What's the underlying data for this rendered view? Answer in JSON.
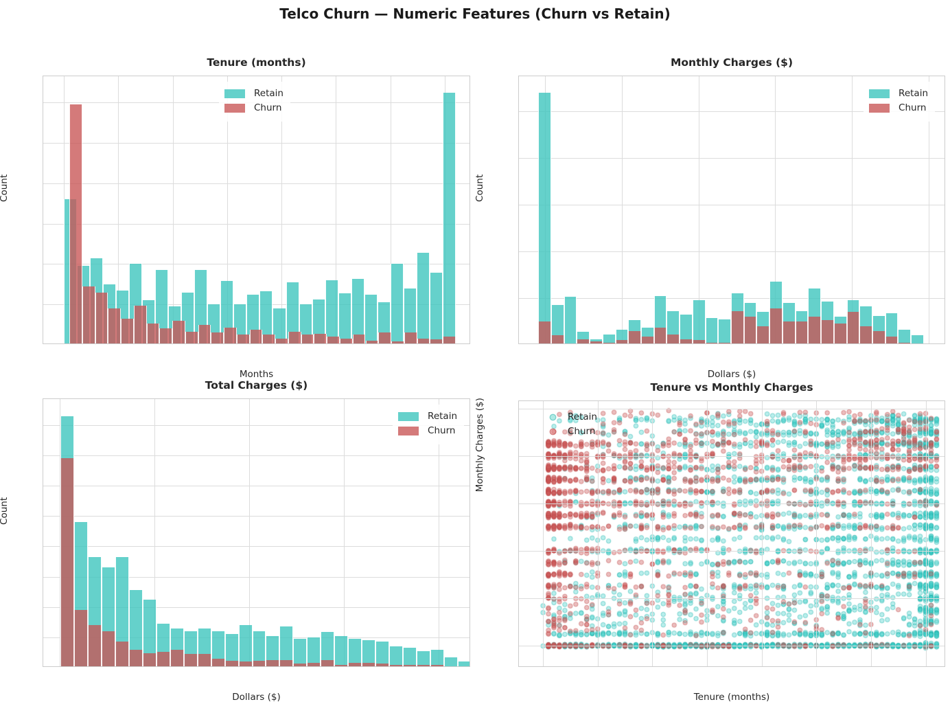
{
  "suptitle": "Telco Churn — Numeric Features (Churn vs Retain)",
  "legend": {
    "retain": "Retain",
    "churn": "Churn"
  },
  "colors": {
    "retain": "#48D1CC",
    "churn": "#CD5C5C",
    "retain_point_fill": "rgba(72,209,204,0.38)",
    "retain_point_edge": "rgba(32,178,170,0.5)",
    "churn_point_fill": "rgba(205,92,92,0.40)",
    "churn_point_edge": "rgba(190,70,70,0.5)",
    "grid": "#dcdcdc"
  },
  "chart_data": [
    {
      "id": "tenure-hist",
      "type": "bar",
      "title": "Tenure (months)",
      "xlabel": "Months",
      "ylabel": "Count",
      "xlim": [
        -3.8,
        74.8
      ],
      "ylim": [
        0,
        665
      ],
      "xticks": [
        0,
        10,
        20,
        30,
        40,
        50,
        60,
        70
      ],
      "yticks": [
        0,
        100,
        200,
        300,
        400,
        500,
        600
      ],
      "grid": true,
      "legend_pos": "upper-center",
      "series": [
        {
          "name": "Retain",
          "bin_start": 0,
          "bin_width": 2.4,
          "values": [
            360,
            195,
            215,
            150,
            135,
            200,
            110,
            185,
            95,
            130,
            185,
            100,
            158,
            100,
            125,
            133,
            90,
            155,
            100,
            113,
            160,
            128,
            163,
            125,
            105,
            200,
            140,
            228,
            178,
            625
          ]
        },
        {
          "name": "Churn",
          "bin_start": 1,
          "bin_width": 2.3667,
          "values": [
            595,
            145,
            130,
            90,
            65,
            97,
            52,
            40,
            60,
            33,
            50,
            30,
            43,
            25,
            38,
            25,
            15,
            33,
            25,
            28,
            20,
            15,
            25,
            10,
            30,
            8,
            30,
            15,
            13,
            20
          ]
        }
      ]
    },
    {
      "id": "monthly-hist",
      "type": "bar",
      "title": "Monthly Charges ($)",
      "xlabel": "Dollars ($)",
      "ylabel": "Count",
      "xlim": [
        13.2,
        124.5
      ],
      "ylim": [
        0,
        1150
      ],
      "xticks": [
        20,
        40,
        60,
        80,
        100,
        120
      ],
      "yticks": [
        0,
        200,
        400,
        600,
        800,
        1000
      ],
      "grid": true,
      "legend_pos": "upper-right",
      "series": [
        {
          "name": "Retain",
          "bin_start": 18.25,
          "bin_width": 3.35,
          "values": [
            1080,
            170,
            205,
            55,
            25,
            45,
            65,
            105,
            75,
            210,
            145,
            130,
            190,
            115,
            110,
            220,
            180,
            140,
            270,
            180,
            145,
            240,
            185,
            120,
            190,
            165,
            125,
            135,
            65,
            40
          ]
        },
        {
          "name": "Churn",
          "bin_start": 18.25,
          "bin_width": 3.35,
          "values": [
            100,
            40,
            2,
            25,
            15,
            8,
            20,
            60,
            35,
            75,
            45,
            25,
            22,
            10,
            8,
            145,
            120,
            80,
            155,
            100,
            100,
            120,
            105,
            90,
            140,
            80,
            60,
            35,
            8,
            2
          ]
        }
      ]
    },
    {
      "id": "total-hist",
      "type": "bar",
      "title": "Total Charges ($)",
      "xlabel": "Dollars ($)",
      "ylabel": "Count",
      "xlim": [
        -350,
        8680
      ],
      "ylim": [
        0,
        886
      ],
      "xticks": [
        0,
        2000,
        4000,
        6000,
        8000
      ],
      "yticks": [
        0,
        100,
        200,
        300,
        400,
        500,
        600,
        700,
        800
      ],
      "grid": true,
      "legend_pos": "upper-right",
      "series": [
        {
          "name": "Retain",
          "bin_start": 18,
          "bin_width": 289,
          "values": [
            830,
            480,
            365,
            330,
            365,
            255,
            225,
            145,
            130,
            120,
            130,
            120,
            110,
            140,
            120,
            105,
            135,
            95,
            100,
            118,
            105,
            95,
            90,
            85,
            70,
            65,
            55,
            58,
            35,
            20
          ]
        },
        {
          "name": "Churn",
          "bin_start": 18,
          "bin_width": 289,
          "values": [
            690,
            190,
            140,
            120,
            85,
            60,
            48,
            52,
            58,
            45,
            45,
            30,
            22,
            20,
            22,
            25,
            25,
            13,
            15,
            25,
            8,
            15,
            15,
            13,
            8,
            8,
            8,
            8,
            2,
            0
          ]
        }
      ]
    },
    {
      "id": "tenure-vs-monthly-scatter",
      "type": "scatter",
      "title": "Tenure vs Monthly Charges",
      "xlabel": "Tenure (months)",
      "ylabel": "Monthly Charges ($)",
      "xlim": [
        -4.4,
        73.7
      ],
      "ylim": [
        10.7,
        123.2
      ],
      "xticks": [
        0,
        10,
        20,
        30,
        40,
        50,
        60,
        70
      ],
      "yticks": [
        20,
        40,
        60,
        80,
        100,
        120
      ],
      "grid": true,
      "legend_pos": "upper-left",
      "point_radius": 3.2,
      "x_integer_months": true,
      "clusters": [
        {
          "series": "retain",
          "count": 620,
          "x": {
            "t": "uniform",
            "min": 0,
            "max": 72
          },
          "y": {
            "t": "const",
            "base": 20,
            "jitter": 0.7
          }
        },
        {
          "series": "retain",
          "count": 200,
          "x": {
            "t": "uniform",
            "min": 0,
            "max": 72
          },
          "y": {
            "t": "const",
            "base": 25,
            "jitter": 1.0
          }
        },
        {
          "series": "retain",
          "count": 1500,
          "x": {
            "t": "pow",
            "min": 0,
            "max": 72,
            "exp": 0.6
          },
          "y": {
            "t": "bands",
            "min": 45,
            "max": 115,
            "step": 5,
            "jitter": 1.4
          }
        },
        {
          "series": "retain",
          "count": 280,
          "x": {
            "t": "uniform",
            "min": 0,
            "max": 72
          },
          "y": {
            "t": "uniform",
            "min": 28,
            "max": 43
          }
        },
        {
          "series": "retain",
          "count": 380,
          "x": {
            "t": "uniform",
            "min": 69,
            "max": 72
          },
          "y": {
            "t": "bands",
            "min": 20,
            "max": 115,
            "step": 5,
            "jitter": 1.5
          }
        },
        {
          "series": "retain",
          "count": 150,
          "x": {
            "t": "pow",
            "min": 0,
            "max": 72,
            "exp": 0.5
          },
          "y": {
            "t": "bands",
            "min": 105,
            "max": 118,
            "step": 4,
            "jitter": 1.2
          }
        },
        {
          "series": "churn",
          "count": 900,
          "x": {
            "t": "pow",
            "min": 1,
            "max": 72,
            "exp": 2.8
          },
          "y": {
            "t": "bands",
            "min": 70,
            "max": 105,
            "step": 5,
            "jitter": 1.3
          }
        },
        {
          "series": "churn",
          "count": 240,
          "x": {
            "t": "pow",
            "min": 1,
            "max": 72,
            "exp": 2.8
          },
          "y": {
            "t": "bands",
            "min": 45,
            "max": 60,
            "step": 5,
            "jitter": 1.3
          }
        },
        {
          "series": "churn",
          "count": 220,
          "x": {
            "t": "pow",
            "min": 1,
            "max": 72,
            "exp": 1.1
          },
          "y": {
            "t": "bands",
            "min": 94,
            "max": 118,
            "step": 4,
            "jitter": 1.4
          }
        },
        {
          "series": "churn",
          "count": 120,
          "x": {
            "t": "pow",
            "min": 1,
            "max": 72,
            "exp": 2.8
          },
          "y": {
            "t": "const",
            "base": 20,
            "jitter": 0.6
          }
        },
        {
          "series": "churn",
          "count": 140,
          "x": {
            "t": "pow",
            "min": 1,
            "max": 72,
            "exp": 2.4
          },
          "y": {
            "t": "uniform",
            "min": 24,
            "max": 42
          }
        },
        {
          "series": "churn",
          "count": 110,
          "x": {
            "t": "uniform",
            "min": 55,
            "max": 72
          },
          "y": {
            "t": "bands",
            "min": 95,
            "max": 118,
            "step": 4,
            "jitter": 1.5
          }
        }
      ]
    }
  ]
}
